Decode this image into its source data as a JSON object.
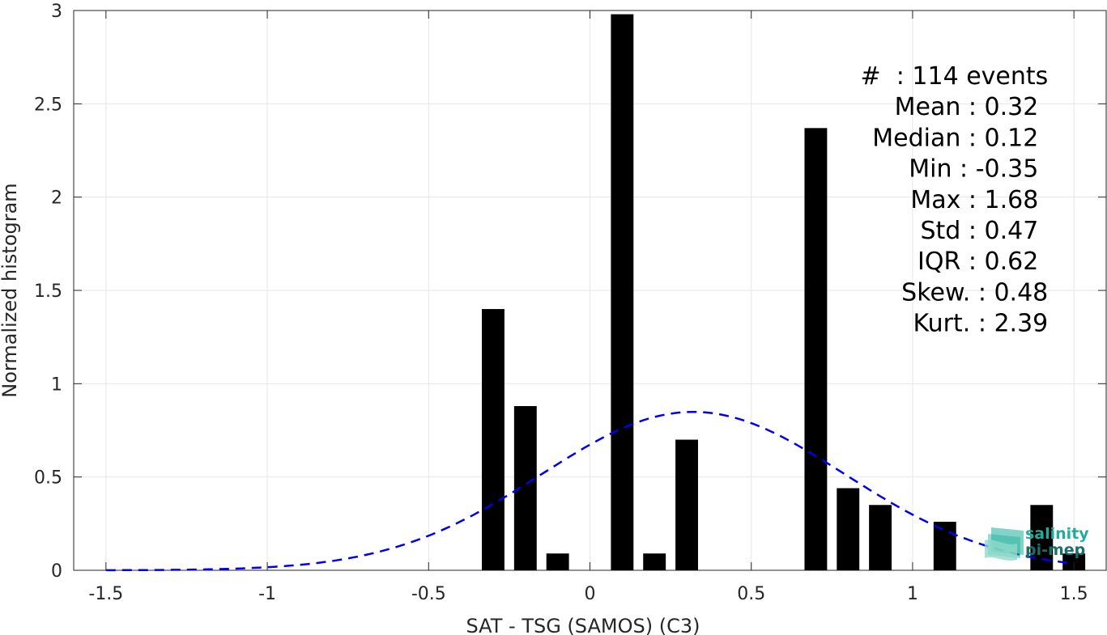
{
  "chart_data": {
    "type": "bar",
    "xlabel": "SAT - TSG (SAMOS) (C3)",
    "ylabel": "Normalized histogram",
    "xlim": [
      -1.6,
      1.6
    ],
    "ylim": [
      0,
      3
    ],
    "x_ticks": [
      -1.5,
      -1,
      -0.5,
      0,
      0.5,
      1,
      1.5
    ],
    "x_tick_labels": [
      "-1.5",
      "-1",
      "-0.5",
      "0",
      "0.5",
      "1",
      "1.5"
    ],
    "y_ticks": [
      0,
      0.5,
      1,
      1.5,
      2,
      2.5,
      3
    ],
    "y_tick_labels": [
      "0",
      "0.5",
      "1",
      "1.5",
      "2",
      "2.5",
      "3"
    ],
    "grid": true,
    "bar_width": 0.07,
    "bars": [
      {
        "x": -0.3,
        "value": 1.4
      },
      {
        "x": -0.2,
        "value": 0.88
      },
      {
        "x": -0.1,
        "value": 0.09
      },
      {
        "x": 0.1,
        "value": 2.98
      },
      {
        "x": 0.2,
        "value": 0.09
      },
      {
        "x": 0.3,
        "value": 0.7
      },
      {
        "x": 0.7,
        "value": 2.37
      },
      {
        "x": 0.8,
        "value": 0.44
      },
      {
        "x": 0.9,
        "value": 0.35
      },
      {
        "x": 1.1,
        "value": 0.26
      },
      {
        "x": 1.4,
        "value": 0.35
      },
      {
        "x": 1.5,
        "value": 0.09
      }
    ],
    "fit_curve": {
      "type": "normal",
      "mean": 0.32,
      "std": 0.47,
      "x_range": [
        -1.5,
        1.5
      ],
      "color": "#0000ee",
      "style": "dashed"
    },
    "bar_color": "#000000",
    "stats_lines": [
      {
        "text": "#  : 114 events",
        "align_right_x": 1.42
      },
      {
        "text": "Mean : 0.32",
        "align_right_x": 1.39
      },
      {
        "text": "Median : 0.12",
        "align_right_x": 1.39
      },
      {
        "text": "Min : -0.35",
        "align_right_x": 1.39
      },
      {
        "text": "Max : 1.68",
        "align_right_x": 1.39
      },
      {
        "text": "Std : 0.47",
        "align_right_x": 1.39
      },
      {
        "text": "IQR : 0.62",
        "align_right_x": 1.39
      },
      {
        "text": "Skew. : 0.48",
        "align_right_x": 1.42
      },
      {
        "text": "Kurt. : 2.39",
        "align_right_x": 1.42
      }
    ]
  },
  "logo": {
    "text_line1": "salinity",
    "text_line2": "pi-mep",
    "color_line1": "#1fae9b",
    "color_line2": "#1a6f6b"
  }
}
